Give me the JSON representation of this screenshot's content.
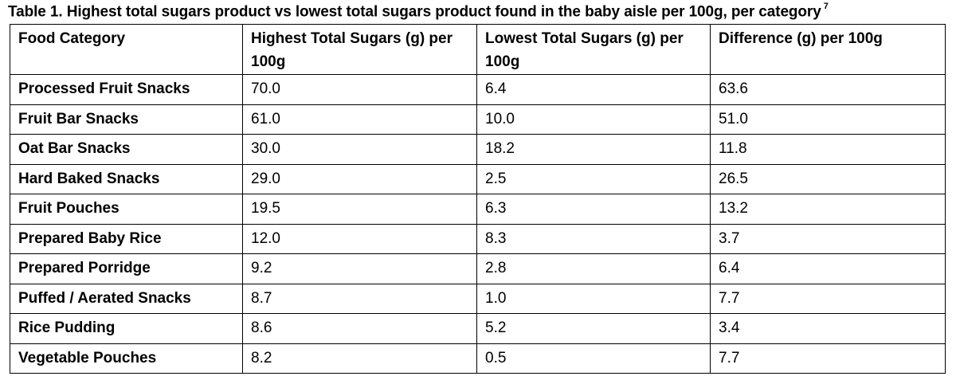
{
  "caption": {
    "text": "Table 1. Highest total sugars product vs lowest total sugars product found in the baby aisle per 100g, per category",
    "superscript": "7"
  },
  "table": {
    "headers": [
      "Food Category",
      "Highest Total Sugars (g) per 100g",
      "Lowest Total Sugars (g) per 100g",
      "Difference (g) per 100g"
    ],
    "rows": [
      [
        "Processed Fruit Snacks",
        "70.0",
        "6.4",
        "63.6"
      ],
      [
        "Fruit Bar Snacks",
        "61.0",
        "10.0",
        "51.0"
      ],
      [
        "Oat Bar Snacks",
        "30.0",
        "18.2",
        "11.8"
      ],
      [
        "Hard Baked Snacks",
        "29.0",
        "2.5",
        "26.5"
      ],
      [
        "Fruit Pouches",
        "19.5",
        "6.3",
        "13.2"
      ],
      [
        "Prepared Baby Rice",
        "12.0",
        "8.3",
        "3.7"
      ],
      [
        "Prepared Porridge",
        "9.2",
        "2.8",
        "6.4"
      ],
      [
        "Puffed / Aerated Snacks",
        "8.7",
        "1.0",
        "7.7"
      ],
      [
        "Rice Pudding",
        "8.6",
        "5.2",
        "3.4"
      ],
      [
        "Vegetable Pouches",
        "8.2",
        "0.5",
        "7.7"
      ]
    ]
  }
}
